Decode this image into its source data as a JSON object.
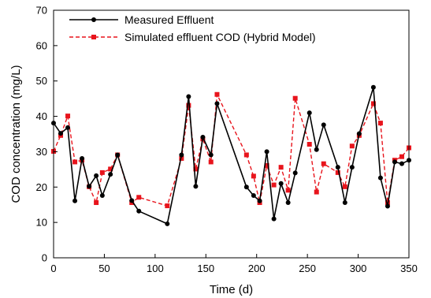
{
  "chart_data": {
    "type": "line",
    "title": "",
    "xlabel": "Time (d)",
    "ylabel": "COD concentration (mg/L)",
    "xlim": [
      0,
      350
    ],
    "ylim": [
      0,
      70
    ],
    "x_ticks": [
      0,
      50,
      100,
      150,
      200,
      250,
      300,
      350
    ],
    "y_ticks": [
      0,
      10,
      20,
      30,
      40,
      50,
      60,
      70
    ],
    "grid": false,
    "legend_position": "top-left",
    "series": [
      {
        "name": "Measured Effluent",
        "color": "#000000",
        "line_style": "solid",
        "marker": "circle",
        "points": [
          [
            0,
            38.1
          ],
          [
            7,
            35.2
          ],
          [
            14,
            36.8
          ],
          [
            21,
            16.1
          ],
          [
            28,
            28.1
          ],
          [
            35,
            20.2
          ],
          [
            42,
            23.2
          ],
          [
            48,
            17.6
          ],
          [
            56,
            23.6
          ],
          [
            63,
            29.1
          ],
          [
            77,
            16.2
          ],
          [
            84,
            13.2
          ],
          [
            112,
            9.6
          ],
          [
            126,
            29.1
          ],
          [
            133,
            45.6
          ],
          [
            140,
            20.2
          ],
          [
            147,
            34.1
          ],
          [
            155,
            29.1
          ],
          [
            161,
            43.6
          ],
          [
            190,
            20.0
          ],
          [
            197,
            17.6
          ],
          [
            203,
            16.1
          ],
          [
            210,
            30.0
          ],
          [
            217,
            11.0
          ],
          [
            224,
            21.0
          ],
          [
            231,
            15.6
          ],
          [
            238,
            24.0
          ],
          [
            252,
            41.0
          ],
          [
            259,
            30.6
          ],
          [
            266,
            37.6
          ],
          [
            280,
            25.6
          ],
          [
            287,
            15.6
          ],
          [
            294,
            25.6
          ],
          [
            301,
            35.1
          ],
          [
            315,
            48.2
          ],
          [
            322,
            22.6
          ],
          [
            329,
            14.6
          ],
          [
            336,
            27.1
          ],
          [
            343,
            26.6
          ],
          [
            350,
            27.6
          ]
        ]
      },
      {
        "name": "Simulated effluent COD (Hybrid Model)",
        "color": "#e8141c",
        "line_style": "dashed",
        "marker": "square",
        "points": [
          [
            0,
            30.1
          ],
          [
            7,
            34.6
          ],
          [
            14,
            40.1
          ],
          [
            21,
            27.1
          ],
          [
            28,
            27.6
          ],
          [
            35,
            20.1
          ],
          [
            42,
            15.6
          ],
          [
            48,
            24.1
          ],
          [
            56,
            25.1
          ],
          [
            63,
            29.1
          ],
          [
            77,
            15.6
          ],
          [
            84,
            17.1
          ],
          [
            112,
            14.7
          ],
          [
            126,
            28.1
          ],
          [
            133,
            43.1
          ],
          [
            140,
            25.1
          ],
          [
            147,
            33.6
          ],
          [
            155,
            27.1
          ],
          [
            161,
            46.2
          ],
          [
            190,
            29.1
          ],
          [
            197,
            23.1
          ],
          [
            203,
            15.6
          ],
          [
            210,
            26.1
          ],
          [
            217,
            20.6
          ],
          [
            224,
            25.6
          ],
          [
            231,
            19.1
          ],
          [
            238,
            45.1
          ],
          [
            252,
            32.1
          ],
          [
            259,
            18.6
          ],
          [
            266,
            26.6
          ],
          [
            280,
            24.1
          ],
          [
            287,
            20.1
          ],
          [
            294,
            31.6
          ],
          [
            301,
            34.6
          ],
          [
            315,
            43.6
          ],
          [
            322,
            38.1
          ],
          [
            329,
            15.6
          ],
          [
            336,
            27.6
          ],
          [
            343,
            28.6
          ],
          [
            350,
            31.1
          ]
        ]
      }
    ]
  }
}
